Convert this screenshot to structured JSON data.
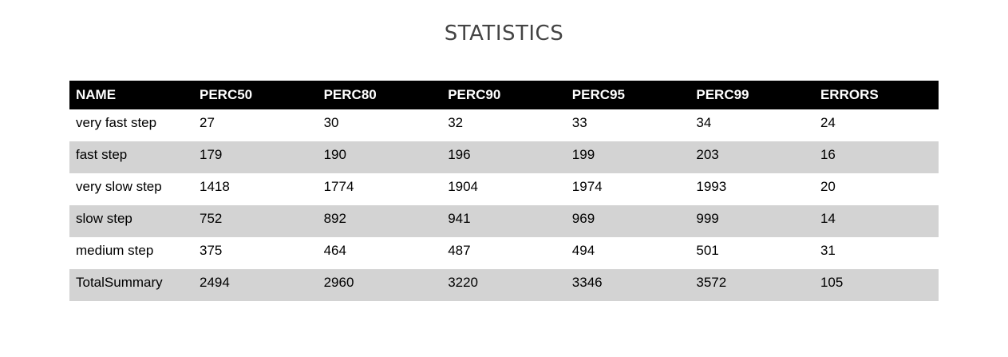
{
  "chart_data": {
    "type": "table",
    "title": "STATISTICS",
    "columns": [
      "NAME",
      "PERC50",
      "PERC80",
      "PERC90",
      "PERC95",
      "PERC99",
      "ERRORS"
    ],
    "rows": [
      [
        "very fast step",
        "27",
        "30",
        "32",
        "33",
        "34",
        "24"
      ],
      [
        "fast step",
        "179",
        "190",
        "196",
        "199",
        "203",
        "16"
      ],
      [
        "very slow step",
        "1418",
        "1774",
        "1904",
        "1974",
        "1993",
        "20"
      ],
      [
        "slow step",
        "752",
        "892",
        "941",
        "969",
        "999",
        "14"
      ],
      [
        "medium step",
        "375",
        "464",
        "487",
        "494",
        "501",
        "31"
      ],
      [
        "TotalSummary",
        "2494",
        "2960",
        "3220",
        "3346",
        "3572",
        "105"
      ]
    ],
    "colors": {
      "header_bg": "#000000",
      "header_text": "#ffffff",
      "stripe_bg": "#d3d3d3",
      "title_text": "#444444"
    }
  }
}
